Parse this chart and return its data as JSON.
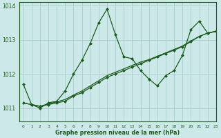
{
  "xlabel_label": "Graphe pression niveau de la mer (hPa)",
  "bg_color": "#cce8e8",
  "grid_color": "#aacccc",
  "line_color": "#1a5c1a",
  "xlim": [
    -0.5,
    23
  ],
  "ylim": [
    1010.6,
    1014.1
  ],
  "yticks": [
    1011,
    1012,
    1013,
    1014
  ],
  "xticks": [
    0,
    1,
    2,
    3,
    4,
    5,
    6,
    7,
    8,
    9,
    10,
    11,
    12,
    13,
    14,
    15,
    16,
    17,
    18,
    19,
    20,
    21,
    22,
    23
  ],
  "series": [
    {
      "x": [
        0,
        1,
        2,
        3,
        4,
        5,
        6,
        7,
        8,
        9,
        10,
        11,
        12,
        13,
        14,
        15,
        16,
        17,
        18,
        19,
        20,
        21,
        22,
        23
      ],
      "y": [
        1011.7,
        1011.1,
        1011.0,
        1011.15,
        1011.2,
        1011.5,
        1012.0,
        1012.4,
        1012.9,
        1013.5,
        1013.9,
        1013.15,
        1012.5,
        1012.45,
        1012.1,
        1011.85,
        1011.65,
        1011.95,
        1012.1,
        1012.55,
        1013.3,
        1013.55,
        1013.2,
        1013.25
      ],
      "linestyle": "-",
      "linewidth": 0.9,
      "marker": true
    },
    {
      "x": [
        0,
        1,
        2,
        3,
        4,
        5,
        6,
        7,
        8,
        9,
        10,
        11,
        12,
        13,
        14,
        15,
        16,
        17,
        18,
        19,
        20,
        21,
        22,
        23
      ],
      "y": [
        1011.15,
        1011.1,
        1011.05,
        1011.1,
        1011.15,
        1011.2,
        1011.35,
        1011.45,
        1011.6,
        1011.75,
        1011.9,
        1012.0,
        1012.1,
        1012.2,
        1012.3,
        1012.4,
        1012.5,
        1012.6,
        1012.7,
        1012.8,
        1012.95,
        1013.1,
        1013.2,
        1013.25
      ],
      "linestyle": "-",
      "linewidth": 0.9,
      "marker": true
    },
    {
      "x": [
        0,
        1,
        2,
        3,
        4,
        5,
        6,
        7,
        8,
        9,
        10,
        11,
        12,
        13,
        14,
        15,
        16,
        17,
        18,
        19,
        20,
        21,
        22,
        23
      ],
      "y": [
        1011.15,
        1011.1,
        1011.05,
        1011.12,
        1011.18,
        1011.25,
        1011.38,
        1011.5,
        1011.65,
        1011.8,
        1011.95,
        1012.05,
        1012.15,
        1012.25,
        1012.35,
        1012.42,
        1012.52,
        1012.62,
        1012.72,
        1012.82,
        1012.97,
        1013.1,
        1013.2,
        1013.25
      ],
      "linestyle": "-",
      "linewidth": 0.9,
      "marker": false
    }
  ]
}
